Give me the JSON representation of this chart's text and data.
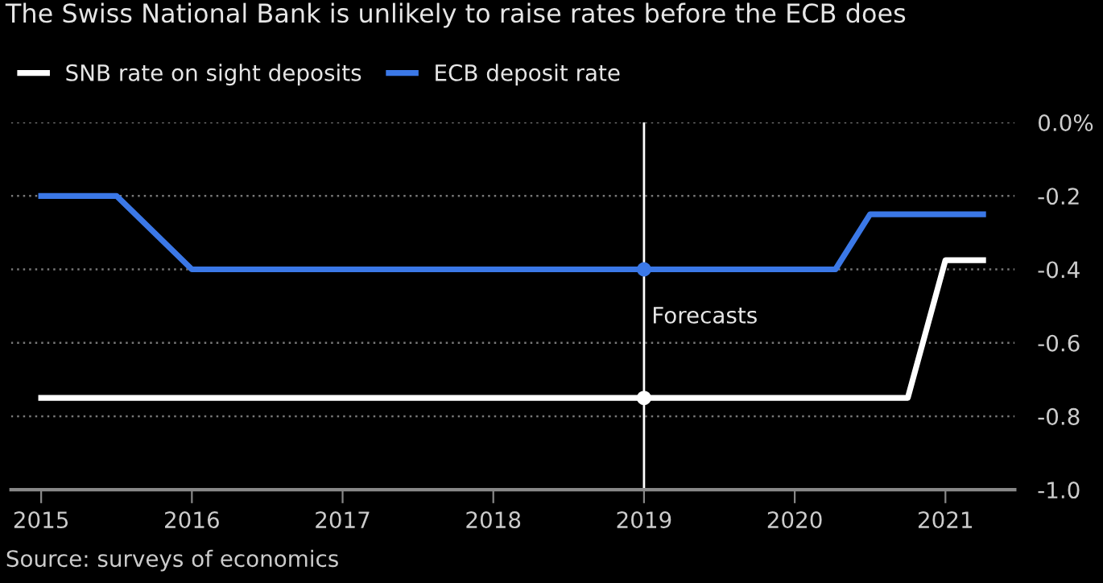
{
  "chart_data": {
    "type": "line",
    "title": "The Swiss National Bank is unlikely to raise rates before the ECB does",
    "series": [
      {
        "name": "SNB rate on sight deposits",
        "color": "#ffffff",
        "x": [
          2015,
          2020.75,
          2021,
          2021.25
        ],
        "values": [
          -0.75,
          -0.75,
          -0.375,
          -0.375
        ]
      },
      {
        "name": "ECB deposit rate",
        "color": "#3b78e7",
        "x": [
          2015,
          2015.5,
          2016,
          2020.27,
          2020.5,
          2021.25
        ],
        "values": [
          -0.2,
          -0.2,
          -0.4,
          -0.4,
          -0.25,
          -0.25
        ]
      },
      {
        "type": "scatter",
        "color": "#ffffff",
        "x": [
          2019
        ],
        "values": [
          -0.75
        ]
      },
      {
        "type": "scatter",
        "color": "#3b78e7",
        "x": [
          2019
        ],
        "values": [
          -0.4
        ]
      }
    ],
    "xlim": [
      2014.8,
      2021.46
    ],
    "xticks": [
      2015,
      2016,
      2017,
      2018,
      2019,
      2020,
      2021
    ],
    "ylim": [
      -1.0,
      0.0
    ],
    "yticks": [
      {
        "value": 0.0,
        "label": "0.0%"
      },
      -0.2,
      -0.4,
      -0.6,
      -0.8,
      {
        "value": -1.0,
        "label": "-1.0"
      }
    ],
    "ref_lines": [
      {
        "axis": "x",
        "value": 2019,
        "label": "Forecasts",
        "color": "#ffffff"
      }
    ],
    "annotations": [
      "Source: surveys of economics"
    ],
    "grid": "y",
    "legend": "top left"
  }
}
